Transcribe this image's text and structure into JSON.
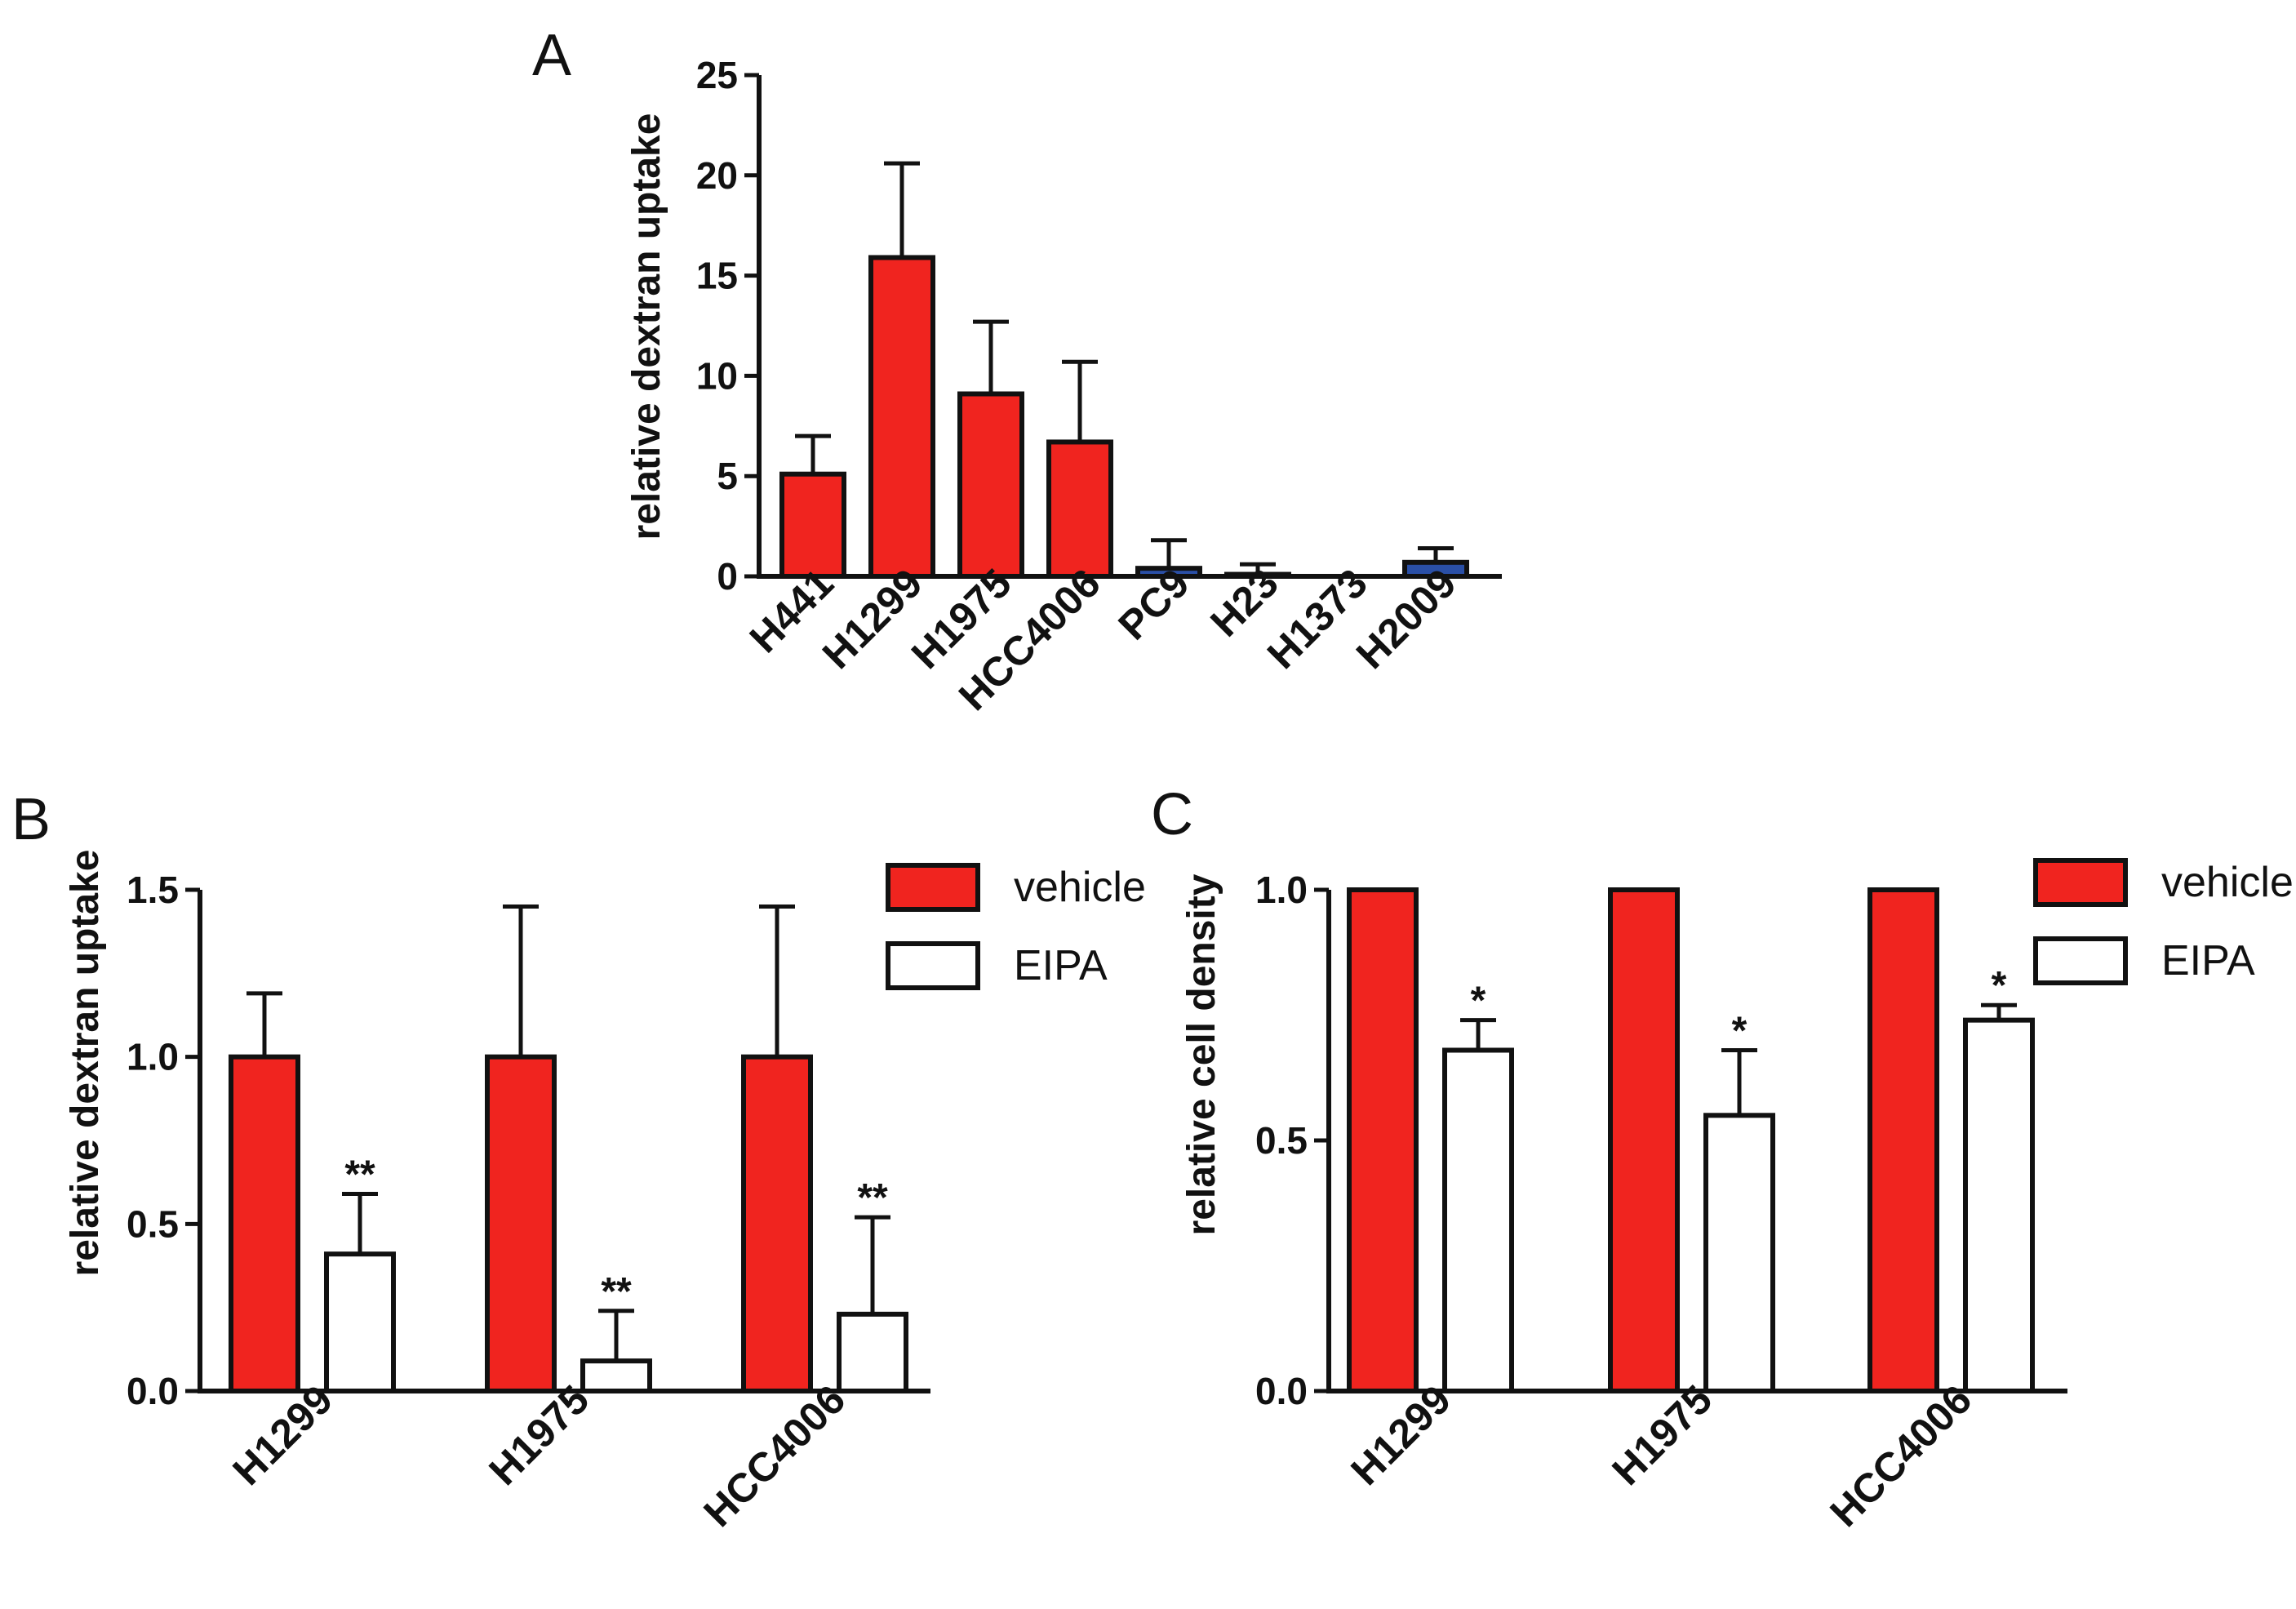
{
  "colors": {
    "vehicle": "#f0241f",
    "eipa": "#ffffff",
    "blue": "#2a4fa6",
    "stroke": "#111111"
  },
  "chart_data": [
    {
      "panel": "A",
      "type": "bar",
      "ylabel": "relative dextran uptake",
      "ylim": [
        0,
        25
      ],
      "yticks": [
        "0",
        "5",
        "10",
        "15",
        "20",
        "25"
      ],
      "categories": [
        "H441",
        "H1299",
        "H1975",
        "HCC4006",
        "PC9",
        "H23",
        "H1373",
        "H2009"
      ],
      "values": [
        5.1,
        15.9,
        9.1,
        6.7,
        0.4,
        0.1,
        0.0,
        0.7
      ],
      "errors": [
        1.9,
        4.7,
        3.6,
        4.0,
        1.4,
        0.5,
        0.0,
        0.7
      ],
      "bar_colors": [
        "red",
        "red",
        "red",
        "red",
        "blue",
        "blue",
        "blue",
        "blue"
      ]
    },
    {
      "panel": "B",
      "type": "bar",
      "ylabel": "relative dextran uptake",
      "ylim": [
        0,
        1.5
      ],
      "yticks": [
        "0.0",
        "0.5",
        "1.0",
        "1.5"
      ],
      "categories": [
        "H1299",
        "H1975",
        "HCC4006"
      ],
      "legend": [
        "vehicle",
        "EIPA"
      ],
      "series": [
        {
          "name": "vehicle",
          "values": [
            1.0,
            1.0,
            1.0
          ],
          "errors": [
            0.19,
            0.45,
            0.45
          ],
          "stars": [
            "",
            "",
            ""
          ]
        },
        {
          "name": "EIPA",
          "values": [
            0.41,
            0.09,
            0.23
          ],
          "errors": [
            0.18,
            0.15,
            0.29
          ],
          "stars": [
            "**",
            "**",
            "**"
          ]
        }
      ]
    },
    {
      "panel": "C",
      "type": "bar",
      "ylabel": "relative cell density",
      "ylim": [
        0,
        1.0
      ],
      "yticks": [
        "0.0",
        "0.5",
        "1.0"
      ],
      "categories": [
        "H1299",
        "H1975",
        "HCC4006"
      ],
      "legend": [
        "vehicle",
        "EIPA"
      ],
      "series": [
        {
          "name": "vehicle",
          "values": [
            1.0,
            1.0,
            1.0
          ],
          "errors": [
            0,
            0,
            0
          ],
          "stars": [
            "",
            "",
            ""
          ]
        },
        {
          "name": "EIPA",
          "values": [
            0.68,
            0.55,
            0.74
          ],
          "errors": [
            0.06,
            0.13,
            0.03
          ],
          "stars": [
            "*",
            "*",
            "*"
          ]
        }
      ]
    }
  ]
}
